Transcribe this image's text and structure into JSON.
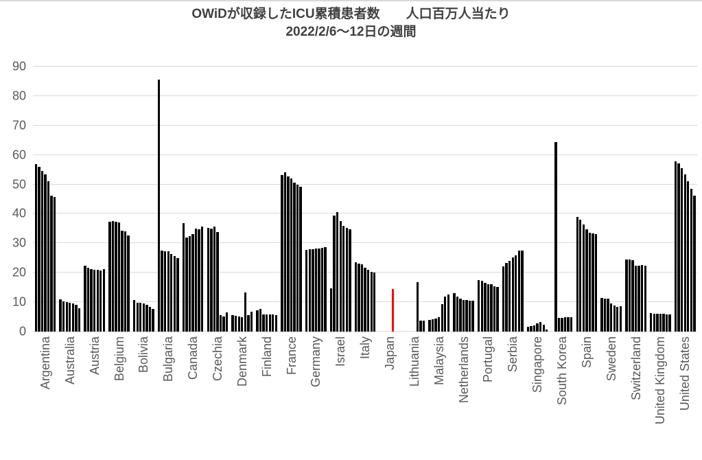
{
  "title": {
    "line1": "OWiDが収録したICU累積患者数　　人口百万人当たり",
    "line2": "2022/2/6～12日の週間"
  },
  "colors": {
    "bar_default": "#000000",
    "bar_highlight": "#ff0000",
    "gridline": "#d9d9d9",
    "axis_text": "#595959",
    "title_text": "#404040",
    "background": "#ffffff"
  },
  "chart_data": {
    "type": "bar",
    "title": "OWiDが収録したICU累積患者数　　人口百万人当たり",
    "subtitle": "2022/2/6～12日の週間",
    "xlabel": "",
    "ylabel": "",
    "ylim": [
      0,
      90
    ],
    "yticks": [
      0,
      10,
      20,
      30,
      40,
      50,
      60,
      70,
      80,
      90
    ],
    "grid": true,
    "legend": "none",
    "bars_per_group": 7,
    "bars_note": "7 bars per country = daily values 2022/2/6-2/12; null = no bar shown",
    "highlight_category": "Japan",
    "groups": [
      {
        "label": "Argentina",
        "values": [
          56.9,
          55.9,
          54.6,
          53.3,
          51.1,
          46.2,
          45.8
        ]
      },
      {
        "label": "Australia",
        "values": [
          11.0,
          10.3,
          10.0,
          9.9,
          9.5,
          9.0,
          8.0
        ]
      },
      {
        "label": "Austria",
        "values": [
          22.4,
          21.6,
          21.2,
          20.9,
          21.1,
          20.8,
          21.2
        ]
      },
      {
        "label": "Belgium",
        "values": [
          37.2,
          37.6,
          37.2,
          37.0,
          34.3,
          34.0,
          32.7
        ]
      },
      {
        "label": "Bolivia",
        "values": [
          10.7,
          9.9,
          9.7,
          9.6,
          9.0,
          8.4,
          7.8
        ]
      },
      {
        "label": "Bulgaria",
        "values": [
          85.5,
          27.5,
          27.4,
          27.2,
          26.3,
          25.7,
          25.0
        ]
      },
      {
        "label": "Canada",
        "values": [
          36.8,
          31.9,
          32.3,
          33.1,
          35.0,
          34.8,
          35.6
        ]
      },
      {
        "label": "Czechia",
        "values": [
          35.3,
          34.9,
          35.6,
          33.7,
          5.5,
          5.2,
          6.6
        ]
      },
      {
        "label": "Denmark",
        "values": [
          5.7,
          5.4,
          5.1,
          4.9,
          13.4,
          5.5,
          6.8
        ]
      },
      {
        "label": "Finland",
        "values": [
          7.3,
          7.8,
          5.9,
          5.8,
          5.8,
          5.8,
          5.7
        ]
      },
      {
        "label": "France",
        "values": [
          53.2,
          54.1,
          52.7,
          52.1,
          50.7,
          50.0,
          49.3
        ]
      },
      {
        "label": "Germany",
        "values": [
          27.8,
          27.9,
          28.0,
          28.1,
          28.2,
          28.4,
          28.6
        ]
      },
      {
        "label": "Israel",
        "values": [
          14.6,
          39.5,
          40.5,
          37.5,
          35.8,
          35.2,
          34.8
        ]
      },
      {
        "label": "Italy",
        "values": [
          23.5,
          23.2,
          22.8,
          21.6,
          21.0,
          20.4,
          20.0
        ]
      },
      {
        "label": "Japan",
        "values": [
          null,
          null,
          null,
          null,
          14.4,
          null,
          null
        ],
        "color": "#ff0000"
      },
      {
        "label": "Lithuania",
        "values": [
          null,
          null,
          null,
          null,
          16.9,
          3.7,
          3.8
        ]
      },
      {
        "label": "Malaysia",
        "values": [
          3.9,
          4.2,
          4.5,
          5.0,
          9.3,
          12.0,
          12.5
        ]
      },
      {
        "label": "Netherlands",
        "values": [
          13.0,
          12.0,
          11.3,
          10.8,
          10.7,
          10.6,
          10.5
        ]
      },
      {
        "label": "Portugal",
        "values": [
          17.4,
          17.2,
          16.6,
          16.2,
          16.0,
          15.3,
          15.2
        ]
      },
      {
        "label": "Serbia",
        "values": [
          22.1,
          23.4,
          24.1,
          25.1,
          25.9,
          27.6,
          27.6
        ]
      },
      {
        "label": "Singapore",
        "values": [
          1.7,
          1.9,
          2.1,
          2.9,
          3.2,
          2.3,
          0.8
        ]
      },
      {
        "label": "South Korea",
        "values": [
          null,
          64.3,
          4.7,
          4.7,
          4.8,
          4.9,
          5.0
        ]
      },
      {
        "label": "Spain",
        "values": [
          38.9,
          37.9,
          36.4,
          34.8,
          33.6,
          33.3,
          33.0
        ]
      },
      {
        "label": "Sweden",
        "values": [
          11.5,
          11.3,
          11.1,
          9.6,
          8.9,
          8.4,
          8.6
        ]
      },
      {
        "label": "Switzerland",
        "values": [
          24.5,
          24.4,
          24.2,
          22.5,
          22.3,
          22.6,
          22.4
        ]
      },
      {
        "label": "United Kingdom",
        "values": [
          6.2,
          6.1,
          6.1,
          6.0,
          6.0,
          5.9,
          5.9
        ]
      },
      {
        "label": "United States",
        "values": [
          57.9,
          57.2,
          55.4,
          53.5,
          51.1,
          48.5,
          46.2
        ]
      }
    ]
  }
}
